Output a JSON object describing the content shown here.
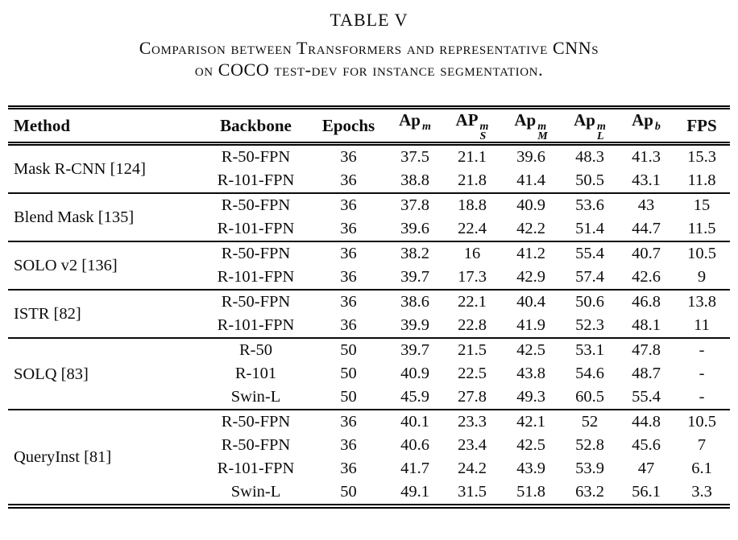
{
  "title": "TABLE V",
  "caption": {
    "line1": "Comparison between Transformers and representative CNNs",
    "line2": "on COCO test-dev for instance segmentation."
  },
  "table": {
    "columns": [
      {
        "label": "Method"
      },
      {
        "label": "Backbone"
      },
      {
        "label": "Epochs"
      },
      {
        "base": "Ap",
        "sup": "m",
        "sub": ""
      },
      {
        "base": "AP",
        "sup": "m",
        "sub": "S"
      },
      {
        "base": "Ap",
        "sup": "m",
        "sub": "M"
      },
      {
        "base": "Ap",
        "sup": "m",
        "sub": "L"
      },
      {
        "base": "Ap",
        "sup": "b",
        "sub": ""
      },
      {
        "label": "FPS"
      }
    ],
    "groups": [
      {
        "method": "Mask R-CNN [124]",
        "rows": [
          [
            "R-50-FPN",
            "36",
            "37.5",
            "21.1",
            "39.6",
            "48.3",
            "41.3",
            "15.3"
          ],
          [
            "R-101-FPN",
            "36",
            "38.8",
            "21.8",
            "41.4",
            "50.5",
            "43.1",
            "11.8"
          ]
        ]
      },
      {
        "method": "Blend Mask [135]",
        "rows": [
          [
            "R-50-FPN",
            "36",
            "37.8",
            "18.8",
            "40.9",
            "53.6",
            "43",
            "15"
          ],
          [
            "R-101-FPN",
            "36",
            "39.6",
            "22.4",
            "42.2",
            "51.4",
            "44.7",
            "11.5"
          ]
        ]
      },
      {
        "method": "SOLO v2 [136]",
        "rows": [
          [
            "R-50-FPN",
            "36",
            "38.2",
            "16",
            "41.2",
            "55.4",
            "40.7",
            "10.5"
          ],
          [
            "R-101-FPN",
            "36",
            "39.7",
            "17.3",
            "42.9",
            "57.4",
            "42.6",
            "9"
          ]
        ]
      },
      {
        "method": "ISTR [82]",
        "rows": [
          [
            "R-50-FPN",
            "36",
            "38.6",
            "22.1",
            "40.4",
            "50.6",
            "46.8",
            "13.8"
          ],
          [
            "R-101-FPN",
            "36",
            "39.9",
            "22.8",
            "41.9",
            "52.3",
            "48.1",
            "11"
          ]
        ]
      },
      {
        "method": "SOLQ [83]",
        "rows": [
          [
            "R-50",
            "50",
            "39.7",
            "21.5",
            "42.5",
            "53.1",
            "47.8",
            "-"
          ],
          [
            "R-101",
            "50",
            "40.9",
            "22.5",
            "43.8",
            "54.6",
            "48.7",
            "-"
          ],
          [
            "Swin-L",
            "50",
            "45.9",
            "27.8",
            "49.3",
            "60.5",
            "55.4",
            "-"
          ]
        ]
      },
      {
        "method": "QueryInst [81]",
        "rows": [
          [
            "R-50-FPN",
            "36",
            "40.1",
            "23.3",
            "42.1",
            "52",
            "44.8",
            "10.5"
          ],
          [
            "R-50-FPN",
            "36",
            "40.6",
            "23.4",
            "42.5",
            "52.8",
            "45.6",
            "7"
          ],
          [
            "R-101-FPN",
            "36",
            "41.7",
            "24.2",
            "43.9",
            "53.9",
            "47",
            "6.1"
          ],
          [
            "Swin-L",
            "50",
            "49.1",
            "31.5",
            "51.8",
            "63.2",
            "56.1",
            "3.3"
          ]
        ]
      }
    ]
  },
  "colors": {
    "text": "#0d0d0d",
    "rule": "#000000",
    "background": "#ffffff"
  }
}
